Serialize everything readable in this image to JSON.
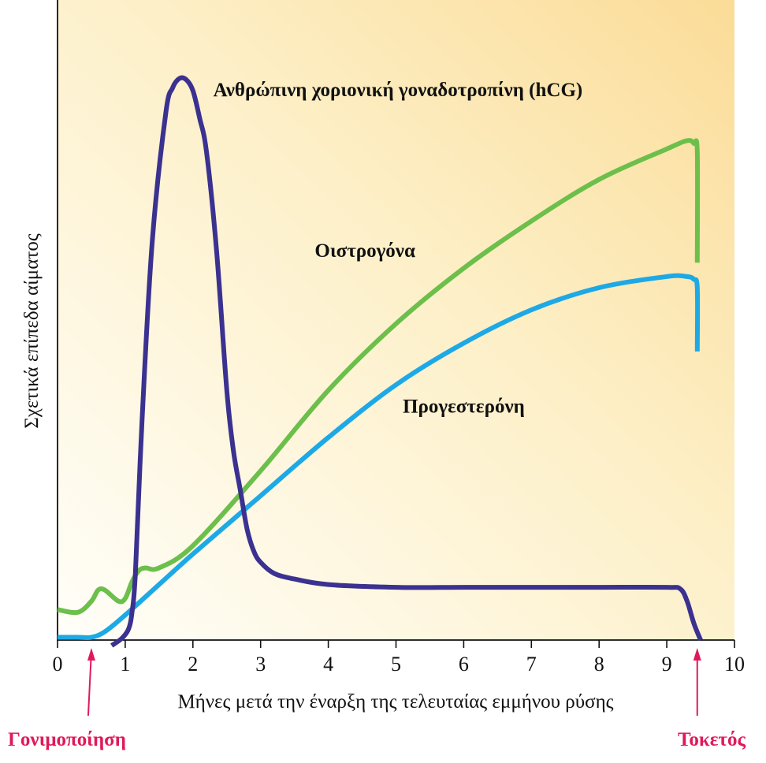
{
  "chart_data": {
    "type": "line",
    "xlabel": "Μήνες μετά την έναρξη της τελευταίας εμμήνου ρύσης",
    "ylabel": "Σχετικά επίπεδα αίματος",
    "xlim": [
      0,
      10
    ],
    "ylim": [
      0,
      100
    ],
    "xticks": [
      "0",
      "1",
      "2",
      "3",
      "4",
      "5",
      "6",
      "7",
      "8",
      "9",
      "10"
    ],
    "grid": false,
    "series": [
      {
        "name": "Ανθρώπινη χοριονική γοναδοτροπίνη (hCG)",
        "color": "#3b3190",
        "x": [
          0.8,
          0.95,
          1.05,
          1.1,
          1.15,
          1.25,
          1.4,
          1.6,
          1.7,
          1.8,
          1.9,
          2.0,
          2.1,
          2.2,
          2.35,
          2.5,
          2.6,
          2.7,
          2.8,
          2.9,
          3.0,
          3.2,
          3.5,
          4.0,
          5.0,
          6.0,
          7.0,
          8.0,
          9.0,
          9.2,
          9.3,
          9.4,
          9.5
        ],
        "y": [
          -1,
          0.3,
          2,
          5,
          12,
          40,
          72,
          95,
          99.5,
          101.2,
          101,
          99,
          94,
          88,
          70,
          45,
          34,
          27,
          20,
          16,
          14,
          12,
          11,
          10,
          9.5,
          9.5,
          9.5,
          9.5,
          9.5,
          9.2,
          7,
          3,
          0
        ]
      },
      {
        "name": "Οιστρογόνα",
        "color": "#6cbf4b",
        "x": [
          0,
          0.3,
          0.5,
          0.6,
          0.7,
          0.9,
          1.0,
          1.1,
          1.2,
          1.3,
          1.5,
          2.0,
          3.0,
          4.0,
          5.0,
          6.0,
          7.0,
          8.0,
          9.0,
          9.3,
          9.4,
          9.45,
          9.45
        ],
        "y": [
          5.5,
          5,
          7,
          9,
          9,
          7,
          7.5,
          10.5,
          12.5,
          13,
          13,
          17,
          30.5,
          45,
          57,
          67,
          75.5,
          83,
          88.5,
          90,
          89.5,
          88,
          68
        ]
      },
      {
        "name": "Προγεστερόνη",
        "color": "#1da9e6",
        "x": [
          0,
          0.3,
          0.5,
          0.7,
          1.0,
          1.5,
          2.0,
          3.0,
          4.0,
          5.0,
          6.0,
          7.0,
          8.0,
          9.0,
          9.3,
          9.4,
          9.45,
          9.45
        ],
        "y": [
          0.5,
          0.5,
          0.5,
          1.5,
          4.5,
          10,
          15.5,
          26,
          36.5,
          46,
          53.5,
          59.5,
          63.5,
          65.5,
          65.5,
          65,
          63.5,
          52
        ]
      }
    ],
    "annotations": [
      {
        "text": "Ανθρώπινη χοριονική γοναδοτροπίνη (hCG)",
        "x": 2.3,
        "y": 98,
        "series": 0
      },
      {
        "text": "Οιστρογόνα",
        "x": 3.8,
        "y": 69,
        "series": 1
      },
      {
        "text": "Προγεστερόνη",
        "x": 5.1,
        "y": 41,
        "series": 2
      }
    ],
    "events": [
      {
        "text": "Γονιμοποίηση",
        "x": 0.5,
        "color": "#e0195a",
        "align": "left"
      },
      {
        "text": "Τοκετός",
        "x": 9.45,
        "color": "#e0195a",
        "align": "right"
      }
    ]
  }
}
